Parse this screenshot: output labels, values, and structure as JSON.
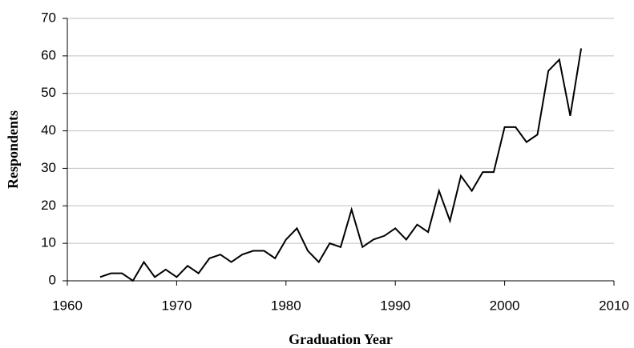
{
  "chart_data": {
    "type": "line",
    "x_label": "Graduation Year",
    "y_label": "Respondents",
    "x": [
      1963,
      1964,
      1965,
      1966,
      1967,
      1968,
      1969,
      1970,
      1971,
      1972,
      1973,
      1974,
      1975,
      1976,
      1977,
      1978,
      1979,
      1980,
      1981,
      1982,
      1983,
      1984,
      1985,
      1986,
      1987,
      1988,
      1989,
      1990,
      1991,
      1992,
      1993,
      1994,
      1995,
      1996,
      1997,
      1998,
      1999,
      2000,
      2001,
      2002,
      2003,
      2004,
      2005,
      2006,
      2007
    ],
    "values": [
      1,
      2,
      2,
      0,
      5,
      1,
      3,
      1,
      4,
      2,
      6,
      7,
      5,
      7,
      8,
      8,
      6,
      11,
      14,
      8,
      5,
      10,
      9,
      19,
      9,
      11,
      12,
      14,
      11,
      15,
      13,
      24,
      16,
      28,
      24,
      29,
      29,
      41,
      41,
      37,
      39,
      56,
      59,
      44,
      62
    ],
    "color": "#000000",
    "xlim": [
      1960,
      2010
    ],
    "xticks": [
      1960,
      1970,
      1980,
      1990,
      2000,
      2010
    ],
    "ylim": [
      0,
      70
    ],
    "yticks": [
      0,
      10,
      20,
      30,
      40,
      50,
      60,
      70
    ],
    "grid": true
  }
}
